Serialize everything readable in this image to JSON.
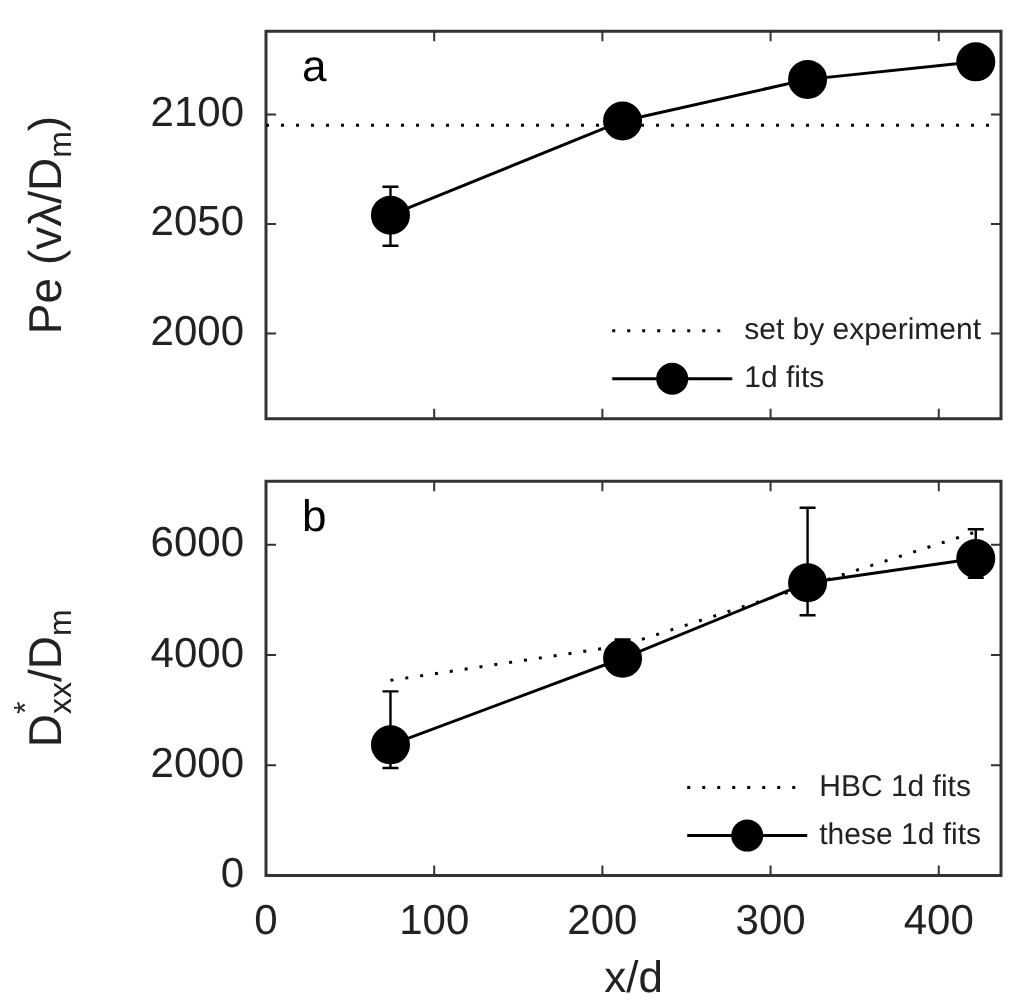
{
  "chart_data": [
    {
      "type": "line",
      "annotations": [
        "a"
      ],
      "ylabel": "Pe (vλ/D$_{m}$)",
      "x": [
        74,
        212,
        322,
        422
      ],
      "series": [
        {
          "name": "1d fits",
          "color": "#000000",
          "values": [
            2054,
            2097,
            2116,
            2124
          ],
          "errors": [
            [
              2040,
              2067
            ],
            null,
            null,
            null
          ],
          "marker": "circle",
          "line_style": "solid"
        }
      ],
      "ref_lines": [
        {
          "axis": "y",
          "value": 2095,
          "label": "set by experiment",
          "color": "#000000",
          "line_style": "dotted"
        }
      ],
      "xlim": [
        0,
        437
      ],
      "ylim": [
        1961,
        2138
      ],
      "xticks": [
        0,
        100,
        200,
        300,
        400
      ],
      "yticks": [
        2000,
        2050,
        2100
      ],
      "tick_labels": "y",
      "legend": "bottom right"
    },
    {
      "type": "line",
      "annotations": [
        "b"
      ],
      "ylabel": "D$^{*}$$_{xx}$/D$_{m}$",
      "xlabel": "x/d",
      "x": [
        74,
        212,
        322,
        422
      ],
      "series": [
        {
          "name": "HBC 1d fits",
          "color": "#000000",
          "values": [
            3540,
            4170,
            5250,
            6230
          ],
          "marker": "none",
          "line_style": "dotted"
        },
        {
          "name": "these 1d fits",
          "color": "#000000",
          "values": [
            2370,
            3940,
            5310,
            5750
          ],
          "errors": [
            [
              1950,
              3340
            ],
            [
              3660,
              4280
            ],
            [
              4720,
              6670
            ],
            [
              5400,
              6280
            ]
          ],
          "marker": "circle",
          "line_style": "solid"
        }
      ],
      "xlim": [
        0,
        437
      ],
      "ylim": [
        0,
        7150
      ],
      "xticks": [
        0,
        100,
        200,
        300,
        400
      ],
      "yticks": [
        0,
        2000,
        4000,
        6000
      ],
      "legend": "bottom right"
    }
  ]
}
